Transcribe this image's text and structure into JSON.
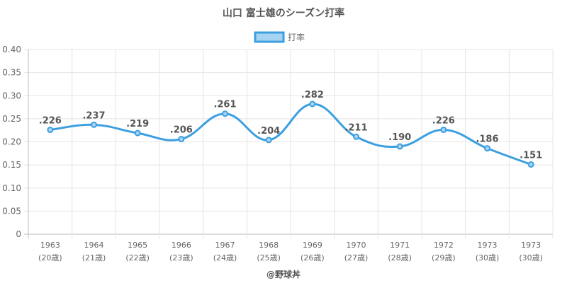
{
  "chart_data": {
    "type": "line",
    "title": "山口 富士雄のシーズン打率",
    "legend": {
      "position": "top",
      "label": "打率"
    },
    "series": [
      {
        "name": "打率",
        "color": "#3d9fe0",
        "values": [
          0.226,
          0.237,
          0.219,
          0.206,
          0.261,
          0.204,
          0.282,
          0.211,
          0.19,
          0.226,
          0.186,
          0.151
        ],
        "labels": [
          ".226",
          ".237",
          ".219",
          ".206",
          ".261",
          ".204",
          ".282",
          ".211",
          ".190",
          ".226",
          ".186",
          ".151"
        ]
      }
    ],
    "categories": [
      {
        "year": "1963",
        "age": "(20歳)"
      },
      {
        "year": "1964",
        "age": "(21歳)"
      },
      {
        "year": "1965",
        "age": "(22歳)"
      },
      {
        "year": "1966",
        "age": "(23歳)"
      },
      {
        "year": "1967",
        "age": "(24歳)"
      },
      {
        "year": "1968",
        "age": "(25歳)"
      },
      {
        "year": "1969",
        "age": "(26歳)"
      },
      {
        "year": "1970",
        "age": "(27歳)"
      },
      {
        "year": "1971",
        "age": "(28歳)"
      },
      {
        "year": "1972",
        "age": "(29歳)"
      },
      {
        "year": "1973",
        "age": "(30歳)"
      },
      {
        "year": "1973",
        "age": "(30歳)"
      }
    ],
    "ylim": [
      0,
      0.4
    ],
    "yticks": [
      "0",
      "0.05",
      "0.10",
      "0.15",
      "0.20",
      "0.25",
      "0.30",
      "0.35",
      "0.40"
    ],
    "grid": true
  },
  "credit": "@野球丼"
}
